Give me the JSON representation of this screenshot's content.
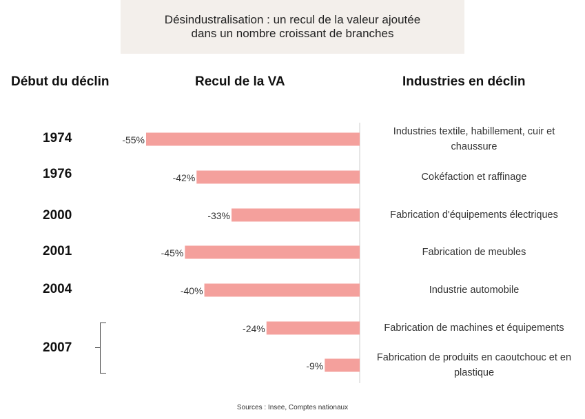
{
  "title": {
    "line1": "Désindustralisation : un recul de la valeur ajoutée",
    "line2": "dans un nombre croissant de branches"
  },
  "headers": {
    "year": "Début du déclin",
    "va": "Recul de la VA",
    "industries": "Industries en déclin"
  },
  "source": "Sources : Insee, Comptes nationaux",
  "colors": {
    "bar": "#f4a09c",
    "axis": "#cccccc"
  },
  "chart_data": {
    "type": "bar",
    "orientation": "horizontal",
    "categories": [
      "Industries textile, habillement, cuir et chaussure",
      "Cokéfaction et raffinage",
      "Fabrication d'équipements électriques",
      "Fabrication de meubles",
      "Industrie automobile",
      "Fabrication de machines et équipements",
      "Fabrication de produits en caoutchouc et en plastique"
    ],
    "values": [
      -55,
      -42,
      -33,
      -45,
      -40,
      -24,
      -9
    ],
    "value_labels": [
      "-55%",
      "-42%",
      "-33%",
      "-45%",
      "-40%",
      "-24%",
      "-9%"
    ],
    "years": [
      "1974",
      "1976",
      "2000",
      "2001",
      "2004",
      "2007"
    ],
    "xlim": [
      -55,
      0
    ]
  }
}
